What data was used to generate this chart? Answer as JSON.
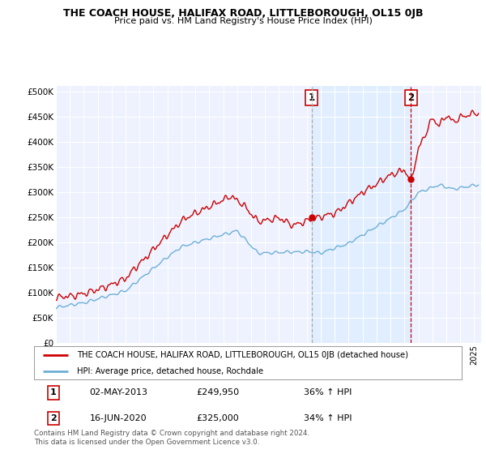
{
  "title": "THE COACH HOUSE, HALIFAX ROAD, LITTLEBOROUGH, OL15 0JB",
  "subtitle": "Price paid vs. HM Land Registry's House Price Index (HPI)",
  "ylabel_ticks": [
    "£0",
    "£50K",
    "£100K",
    "£150K",
    "£200K",
    "£250K",
    "£300K",
    "£350K",
    "£400K",
    "£450K",
    "£500K"
  ],
  "ytick_values": [
    0,
    50000,
    100000,
    150000,
    200000,
    250000,
    300000,
    350000,
    400000,
    450000,
    500000
  ],
  "ylim": [
    0,
    510000
  ],
  "xlim_start": 1995.0,
  "xlim_end": 2025.5,
  "sale1_date": 2013.33,
  "sale1_price": 249950,
  "sale2_date": 2020.46,
  "sale2_price": 325000,
  "hpi_color": "#6daed6",
  "price_color": "#cc0000",
  "sale1_vline_color": "#aaaaaa",
  "sale2_vline_color": "#cc0000",
  "shade_color": "#ddeeff",
  "legend_label_price": "THE COACH HOUSE, HALIFAX ROAD, LITTLEBOROUGH, OL15 0JB (detached house)",
  "legend_label_hpi": "HPI: Average price, detached house, Rochdale",
  "table_row1": [
    "1",
    "02-MAY-2013",
    "£249,950",
    "36% ↑ HPI"
  ],
  "table_row2": [
    "2",
    "16-JUN-2020",
    "£325,000",
    "34% ↑ HPI"
  ],
  "footnote": "Contains HM Land Registry data © Crown copyright and database right 2024.\nThis data is licensed under the Open Government Licence v3.0.",
  "plot_bg_color": "#eef2ff"
}
